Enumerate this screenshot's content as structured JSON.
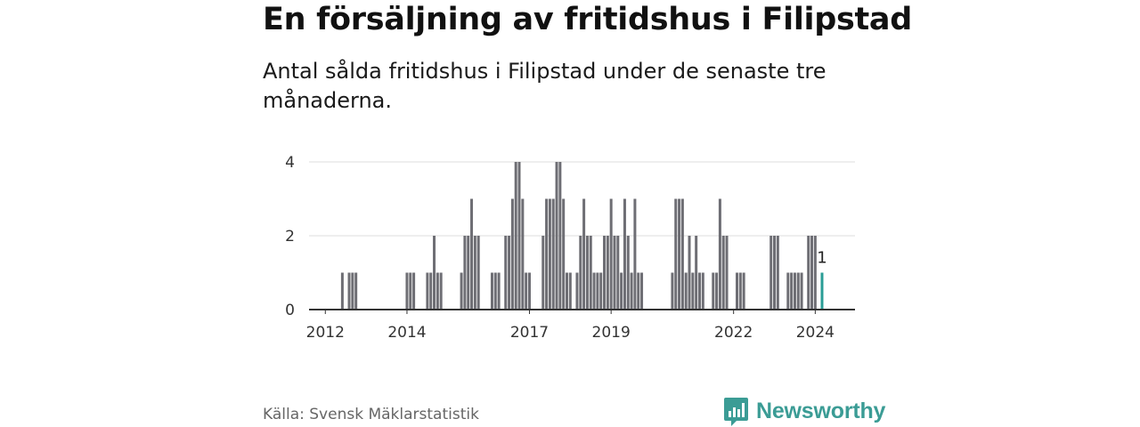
{
  "title": "En försäljning av fritidshus i Filipstad",
  "subtitle": "Antal sålda fritidshus i Filipstad under de senaste tre månaderna.",
  "source": "Källa: Svensk Mäklarstatistik",
  "brand": {
    "name": "Newsworthy",
    "icon": "newsworthy-logo-icon",
    "color": "#3b9c95"
  },
  "colors": {
    "bar": "#6e6e74",
    "highlight": "#2a9d96",
    "grid": "#dddddd",
    "baseline": "#333333"
  },
  "chart_data": {
    "type": "bar",
    "title": "",
    "xlabel": "",
    "ylabel": "",
    "ylim": [
      0,
      4
    ],
    "yticks": [
      "0",
      "2",
      "4"
    ],
    "xticks": [
      "2012",
      "2014",
      "2017",
      "2019",
      "2022",
      "2024"
    ],
    "grid": true,
    "legend": "none",
    "period": "rolling three-month sums, monthly",
    "x_range": [
      "2011-09",
      "2024-03"
    ],
    "highlight_label": "1",
    "series": [
      {
        "values": [
          [
            "2012-06",
            1
          ],
          [
            "2012-08",
            1
          ],
          [
            "2012-09",
            1
          ],
          [
            "2012-10",
            1
          ],
          [
            "2014-01",
            1
          ],
          [
            "2014-02",
            1
          ],
          [
            "2014-03",
            1
          ],
          [
            "2014-07",
            1
          ],
          [
            "2014-08",
            1
          ],
          [
            "2014-09",
            2
          ],
          [
            "2014-10",
            1
          ],
          [
            "2014-11",
            1
          ],
          [
            "2015-05",
            1
          ],
          [
            "2015-06",
            2
          ],
          [
            "2015-07",
            2
          ],
          [
            "2015-08",
            3
          ],
          [
            "2015-09",
            2
          ],
          [
            "2015-10",
            2
          ],
          [
            "2016-02",
            1
          ],
          [
            "2016-03",
            1
          ],
          [
            "2016-04",
            1
          ],
          [
            "2016-06",
            2
          ],
          [
            "2016-07",
            2
          ],
          [
            "2016-08",
            3
          ],
          [
            "2016-09",
            4
          ],
          [
            "2016-10",
            4
          ],
          [
            "2016-11",
            3
          ],
          [
            "2016-12",
            1
          ],
          [
            "2017-01",
            1
          ],
          [
            "2017-05",
            2
          ],
          [
            "2017-06",
            3
          ],
          [
            "2017-07",
            3
          ],
          [
            "2017-08",
            3
          ],
          [
            "2017-09",
            4
          ],
          [
            "2017-10",
            4
          ],
          [
            "2017-11",
            3
          ],
          [
            "2017-12",
            1
          ],
          [
            "2018-01",
            1
          ],
          [
            "2018-03",
            1
          ],
          [
            "2018-04",
            2
          ],
          [
            "2018-05",
            3
          ],
          [
            "2018-06",
            2
          ],
          [
            "2018-07",
            2
          ],
          [
            "2018-08",
            1
          ],
          [
            "2018-09",
            1
          ],
          [
            "2018-10",
            1
          ],
          [
            "2018-11",
            2
          ],
          [
            "2018-12",
            2
          ],
          [
            "2019-01",
            3
          ],
          [
            "2019-02",
            2
          ],
          [
            "2019-03",
            2
          ],
          [
            "2019-04",
            1
          ],
          [
            "2019-05",
            3
          ],
          [
            "2019-06",
            2
          ],
          [
            "2019-07",
            1
          ],
          [
            "2019-08",
            3
          ],
          [
            "2019-09",
            1
          ],
          [
            "2019-10",
            1
          ],
          [
            "2020-07",
            1
          ],
          [
            "2020-08",
            3
          ],
          [
            "2020-09",
            3
          ],
          [
            "2020-10",
            3
          ],
          [
            "2020-11",
            1
          ],
          [
            "2020-12",
            2
          ],
          [
            "2021-01",
            1
          ],
          [
            "2021-02",
            2
          ],
          [
            "2021-03",
            1
          ],
          [
            "2021-04",
            1
          ],
          [
            "2021-07",
            1
          ],
          [
            "2021-08",
            1
          ],
          [
            "2021-09",
            3
          ],
          [
            "2021-10",
            2
          ],
          [
            "2021-11",
            2
          ],
          [
            "2022-02",
            1
          ],
          [
            "2022-03",
            1
          ],
          [
            "2022-04",
            1
          ],
          [
            "2022-12",
            2
          ],
          [
            "2023-01",
            2
          ],
          [
            "2023-02",
            2
          ],
          [
            "2023-05",
            1
          ],
          [
            "2023-06",
            1
          ],
          [
            "2023-07",
            1
          ],
          [
            "2023-08",
            1
          ],
          [
            "2023-09",
            1
          ],
          [
            "2023-11",
            2
          ],
          [
            "2023-12",
            2
          ],
          [
            "2024-01",
            2
          ]
        ]
      }
    ],
    "highlight": [
      "2024-03",
      1
    ]
  }
}
